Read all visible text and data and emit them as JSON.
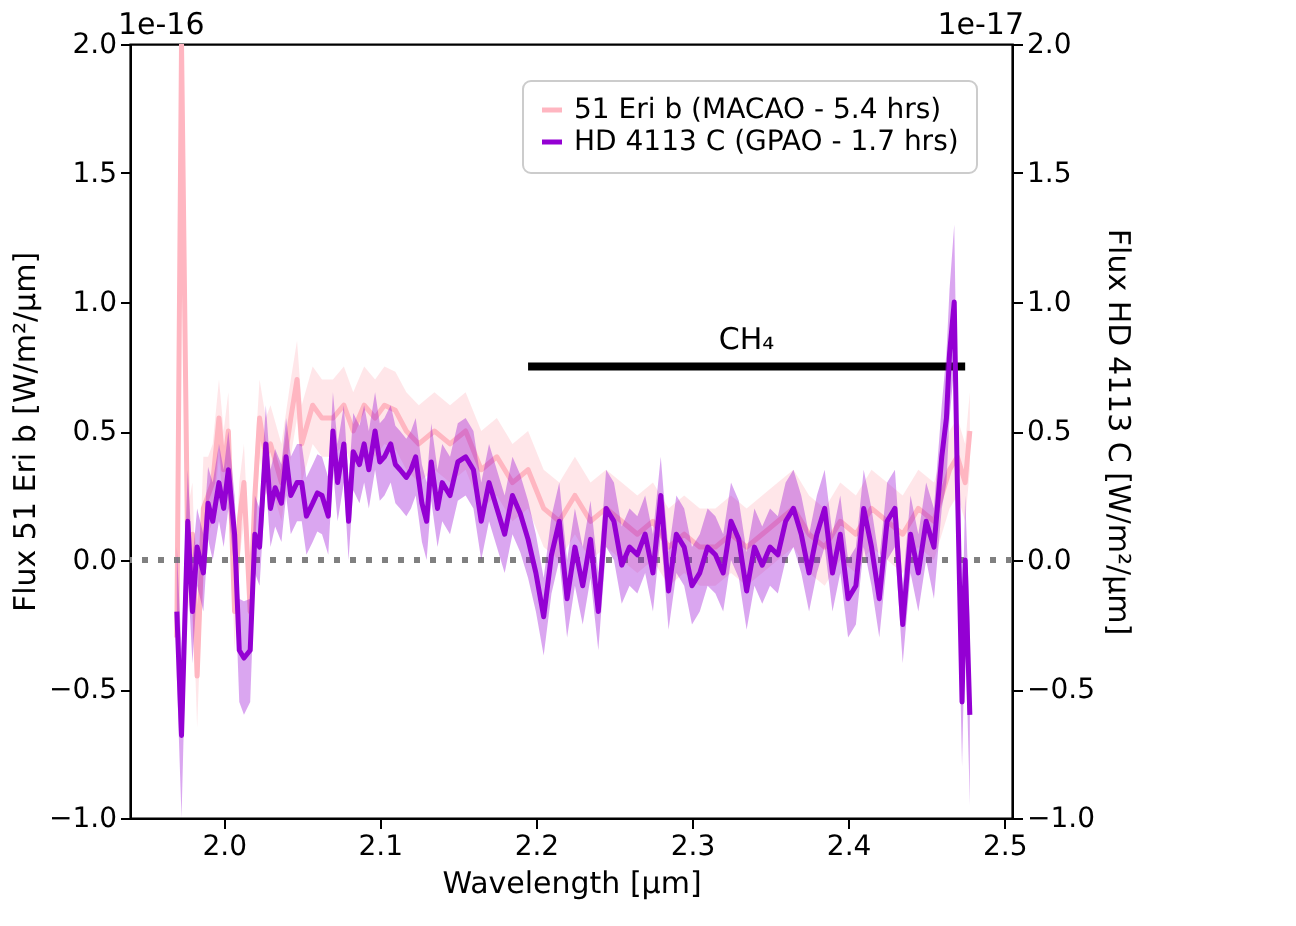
{
  "chart_data": {
    "type": "line",
    "xlabel": "Wavelength [μm]",
    "ylabel": "Flux 51 Eri b [W/m²/μm]",
    "y2label": "Flux HD 4113 C [W/m²/μm]",
    "xlim": [
      1.94,
      2.505
    ],
    "xticks": [
      {
        "value": 2.0,
        "label": "2.0"
      },
      2.1,
      2.2,
      2.3,
      2.4,
      2.5
    ],
    "ylim": [
      -1.0,
      2.0
    ],
    "yticks": [
      {
        "value": -1.0,
        "label": "−1.0"
      },
      {
        "value": -0.5,
        "label": "−0.5"
      },
      {
        "value": 0.0,
        "label": "0.0"
      },
      0.5,
      {
        "value": 1.0,
        "label": "1.0"
      },
      1.5,
      {
        "value": 2.0,
        "label": "2.0"
      }
    ],
    "y2lim": [
      -1.0,
      2.0
    ],
    "y2ticks": [
      {
        "value": -1.0,
        "label": "−1.0"
      },
      {
        "value": -0.5,
        "label": "−0.5"
      },
      {
        "value": 0.0,
        "label": "0.0"
      },
      0.5,
      {
        "value": 1.0,
        "label": "1.0"
      },
      1.5,
      {
        "value": 2.0,
        "label": "2.0"
      }
    ],
    "grid": false,
    "legend": "top right",
    "line_style": "solid",
    "annotations": [
      "1e-16",
      "1e-17",
      "CH₄"
    ],
    "ref_lines": [
      {
        "axis": "y",
        "value": 0.0,
        "color": "#808080",
        "line_style": "dotted"
      }
    ],
    "series": [
      {
        "name": "51 Eri b (MACAO - 5.4 hrs)",
        "color": "#ffb6c1",
        "axis": "y",
        "x": [
          1.97,
          1.973,
          1.977,
          1.98,
          1.983,
          1.987,
          1.99,
          1.993,
          1.997,
          2.0,
          2.003,
          2.007,
          2.01,
          2.013,
          2.017,
          2.02,
          2.023,
          2.027,
          2.03,
          2.037,
          2.043,
          2.047,
          2.05,
          2.057,
          2.063,
          2.07,
          2.077,
          2.083,
          2.09,
          2.097,
          2.103,
          2.11,
          2.117,
          2.125,
          2.135,
          2.145,
          2.155,
          2.165,
          2.175,
          2.185,
          2.195,
          2.205,
          2.215,
          2.225,
          2.235,
          2.245,
          2.255,
          2.265,
          2.275,
          2.285,
          2.295,
          2.305,
          2.315,
          2.325,
          2.335,
          2.345,
          2.355,
          2.365,
          2.375,
          2.385,
          2.395,
          2.405,
          2.415,
          2.425,
          2.435,
          2.445,
          2.455,
          2.465,
          2.47,
          2.475,
          2.478
        ],
        "values": [
          -0.3,
          2.0,
          0.0,
          0.1,
          -0.45,
          0.2,
          0.25,
          0.3,
          0.55,
          0.35,
          0.5,
          -0.2,
          0.15,
          0.3,
          -0.2,
          0.25,
          0.55,
          0.4,
          0.45,
          0.3,
          0.55,
          0.7,
          0.45,
          0.6,
          0.55,
          0.55,
          0.6,
          0.5,
          0.6,
          0.55,
          0.6,
          0.58,
          0.5,
          0.45,
          0.5,
          0.45,
          0.5,
          0.35,
          0.4,
          0.3,
          0.35,
          0.2,
          0.15,
          0.25,
          0.15,
          0.2,
          0.15,
          0.1,
          0.15,
          0.05,
          0.1,
          0.05,
          0.05,
          0.1,
          0.05,
          0.1,
          0.15,
          0.2,
          0.1,
          0.05,
          0.15,
          0.1,
          0.2,
          0.15,
          0.1,
          0.2,
          0.15,
          0.35,
          0.4,
          0.3,
          0.5
        ],
        "lower": [
          -0.5,
          1.6,
          -0.2,
          -0.1,
          -0.65,
          0.0,
          0.1,
          0.15,
          0.4,
          0.2,
          0.35,
          -0.35,
          0.0,
          0.15,
          -0.35,
          0.1,
          0.4,
          0.25,
          0.3,
          0.15,
          0.4,
          0.55,
          0.3,
          0.45,
          0.4,
          0.4,
          0.45,
          0.35,
          0.45,
          0.4,
          0.45,
          0.43,
          0.35,
          0.3,
          0.35,
          0.3,
          0.35,
          0.2,
          0.25,
          0.15,
          0.2,
          0.05,
          0.0,
          0.1,
          0.0,
          0.05,
          0.0,
          -0.05,
          0.0,
          -0.1,
          -0.05,
          -0.1,
          -0.1,
          -0.05,
          -0.1,
          -0.05,
          0.0,
          0.05,
          -0.05,
          -0.1,
          0.0,
          -0.05,
          0.05,
          0.0,
          -0.05,
          0.05,
          0.0,
          0.2,
          0.25,
          0.15,
          0.35
        ],
        "upper": [
          -0.1,
          2.0,
          0.2,
          0.3,
          -0.25,
          0.4,
          0.4,
          0.45,
          0.7,
          0.5,
          0.65,
          -0.05,
          0.3,
          0.45,
          -0.05,
          0.4,
          0.7,
          0.55,
          0.6,
          0.45,
          0.7,
          0.85,
          0.6,
          0.75,
          0.7,
          0.7,
          0.75,
          0.65,
          0.75,
          0.7,
          0.75,
          0.73,
          0.65,
          0.6,
          0.65,
          0.6,
          0.65,
          0.5,
          0.55,
          0.45,
          0.5,
          0.35,
          0.3,
          0.4,
          0.3,
          0.35,
          0.3,
          0.25,
          0.3,
          0.2,
          0.25,
          0.2,
          0.2,
          0.25,
          0.2,
          0.25,
          0.3,
          0.35,
          0.25,
          0.2,
          0.3,
          0.25,
          0.35,
          0.3,
          0.25,
          0.35,
          0.3,
          0.5,
          0.55,
          0.45,
          0.65
        ]
      },
      {
        "name": "HD 4113 C (GPAO - 1.7 hrs)",
        "color": "#9400d3",
        "axis": "y2",
        "x": [
          1.97,
          1.973,
          1.977,
          1.98,
          1.983,
          1.987,
          1.99,
          1.993,
          1.997,
          2.0,
          2.003,
          2.007,
          2.01,
          2.013,
          2.017,
          2.02,
          2.023,
          2.027,
          2.03,
          2.033,
          2.037,
          2.04,
          2.043,
          2.047,
          2.05,
          2.053,
          2.057,
          2.06,
          2.063,
          2.067,
          2.07,
          2.073,
          2.077,
          2.08,
          2.083,
          2.087,
          2.09,
          2.093,
          2.097,
          2.1,
          2.103,
          2.107,
          2.11,
          2.113,
          2.117,
          2.12,
          2.123,
          2.127,
          2.13,
          2.133,
          2.137,
          2.14,
          2.145,
          2.15,
          2.155,
          2.16,
          2.165,
          2.17,
          2.175,
          2.18,
          2.185,
          2.19,
          2.195,
          2.2,
          2.205,
          2.21,
          2.215,
          2.22,
          2.225,
          2.23,
          2.235,
          2.24,
          2.245,
          2.25,
          2.255,
          2.26,
          2.265,
          2.27,
          2.275,
          2.28,
          2.285,
          2.29,
          2.295,
          2.3,
          2.305,
          2.31,
          2.315,
          2.32,
          2.325,
          2.33,
          2.335,
          2.34,
          2.345,
          2.35,
          2.355,
          2.36,
          2.365,
          2.37,
          2.375,
          2.38,
          2.385,
          2.39,
          2.395,
          2.4,
          2.405,
          2.41,
          2.415,
          2.42,
          2.425,
          2.43,
          2.435,
          2.44,
          2.445,
          2.45,
          2.455,
          2.46,
          2.463,
          2.465,
          2.468,
          2.47,
          2.473,
          2.475,
          2.478
        ],
        "values": [
          -0.2,
          -0.68,
          0.15,
          -0.2,
          0.05,
          -0.05,
          0.22,
          0.15,
          0.3,
          0.2,
          0.35,
          0.1,
          -0.35,
          -0.38,
          -0.35,
          0.1,
          0.05,
          0.45,
          0.2,
          0.28,
          0.22,
          0.4,
          0.25,
          0.3,
          0.3,
          0.17,
          0.22,
          0.26,
          0.25,
          0.17,
          0.5,
          0.3,
          0.45,
          0.15,
          0.42,
          0.37,
          0.45,
          0.35,
          0.5,
          0.38,
          0.4,
          0.45,
          0.37,
          0.35,
          0.32,
          0.35,
          0.4,
          0.22,
          0.15,
          0.38,
          0.2,
          0.3,
          0.25,
          0.38,
          0.4,
          0.35,
          0.15,
          0.3,
          0.2,
          0.1,
          0.25,
          0.18,
          0.08,
          -0.05,
          -0.22,
          0.02,
          0.15,
          -0.15,
          0.05,
          -0.1,
          0.08,
          -0.2,
          0.2,
          0.15,
          -0.02,
          0.05,
          0.02,
          0.1,
          -0.05,
          0.25,
          -0.12,
          0.1,
          0.05,
          -0.1,
          -0.05,
          0.05,
          0.02,
          -0.05,
          0.15,
          0.08,
          -0.12,
          0.05,
          -0.02,
          0.05,
          0.02,
          0.15,
          0.2,
          0.1,
          -0.05,
          0.1,
          0.2,
          -0.05,
          0.1,
          -0.15,
          -0.1,
          0.2,
          0.05,
          -0.15,
          0.15,
          0.2,
          -0.25,
          0.1,
          -0.05,
          0.15,
          0.05,
          0.4,
          0.55,
          0.8,
          1.0,
          0.3,
          -0.55,
          0.0,
          -0.6
        ],
        "lower": [
          -0.45,
          -1.0,
          -0.05,
          -0.4,
          -0.1,
          -0.2,
          0.08,
          0.0,
          0.15,
          0.05,
          0.2,
          -0.05,
          -0.55,
          -0.6,
          -0.55,
          -0.05,
          -0.1,
          0.3,
          0.05,
          0.13,
          0.07,
          0.25,
          0.1,
          0.15,
          0.15,
          0.02,
          0.07,
          0.11,
          0.1,
          0.02,
          0.35,
          0.15,
          0.3,
          0.0,
          0.27,
          0.22,
          0.3,
          0.2,
          0.35,
          0.23,
          0.25,
          0.3,
          0.22,
          0.2,
          0.17,
          0.2,
          0.25,
          0.07,
          0.0,
          0.23,
          0.05,
          0.15,
          0.1,
          0.23,
          0.25,
          0.2,
          0.0,
          0.15,
          0.05,
          -0.05,
          0.1,
          0.03,
          -0.07,
          -0.2,
          -0.37,
          -0.13,
          0.0,
          -0.3,
          -0.1,
          -0.25,
          -0.07,
          -0.35,
          0.05,
          0.0,
          -0.17,
          -0.1,
          -0.13,
          -0.05,
          -0.2,
          0.1,
          -0.27,
          -0.05,
          -0.1,
          -0.25,
          -0.2,
          -0.1,
          -0.13,
          -0.2,
          0.0,
          -0.07,
          -0.27,
          -0.1,
          -0.17,
          -0.1,
          -0.13,
          0.0,
          0.05,
          -0.05,
          -0.2,
          -0.05,
          0.05,
          -0.2,
          -0.05,
          -0.3,
          -0.25,
          0.05,
          -0.1,
          -0.3,
          0.0,
          0.05,
          -0.4,
          -0.05,
          -0.2,
          0.0,
          -0.15,
          0.2,
          0.3,
          0.55,
          0.75,
          0.05,
          -0.8,
          -0.25,
          -0.95
        ],
        "upper": [
          0.05,
          -0.35,
          0.35,
          0.0,
          0.2,
          0.1,
          0.36,
          0.3,
          0.45,
          0.35,
          0.5,
          0.25,
          -0.15,
          -0.16,
          -0.15,
          0.25,
          0.2,
          0.6,
          0.35,
          0.43,
          0.37,
          0.55,
          0.4,
          0.45,
          0.45,
          0.32,
          0.37,
          0.41,
          0.4,
          0.32,
          0.65,
          0.45,
          0.6,
          0.3,
          0.57,
          0.52,
          0.6,
          0.5,
          0.65,
          0.53,
          0.55,
          0.6,
          0.52,
          0.5,
          0.47,
          0.5,
          0.55,
          0.37,
          0.3,
          0.53,
          0.35,
          0.45,
          0.4,
          0.53,
          0.55,
          0.5,
          0.3,
          0.45,
          0.35,
          0.25,
          0.4,
          0.33,
          0.23,
          0.1,
          -0.07,
          0.17,
          0.3,
          0.0,
          0.2,
          0.05,
          0.23,
          -0.05,
          0.35,
          0.3,
          0.13,
          0.2,
          0.17,
          0.25,
          0.1,
          0.4,
          0.03,
          0.25,
          0.2,
          0.05,
          0.1,
          0.2,
          0.17,
          0.1,
          0.3,
          0.23,
          0.03,
          0.2,
          0.13,
          0.2,
          0.17,
          0.3,
          0.35,
          0.25,
          0.1,
          0.25,
          0.35,
          0.1,
          0.25,
          0.0,
          0.05,
          0.35,
          0.2,
          0.0,
          0.3,
          0.35,
          -0.1,
          0.25,
          0.1,
          0.3,
          0.2,
          0.6,
          0.8,
          1.05,
          1.3,
          0.55,
          -0.3,
          0.25,
          -0.25
        ]
      },
      {
        "type": "line",
        "color": "#000000",
        "axis": "y",
        "x": [
          2.195,
          2.475
        ],
        "values": [
          0.75,
          0.75
        ]
      }
    ]
  }
}
